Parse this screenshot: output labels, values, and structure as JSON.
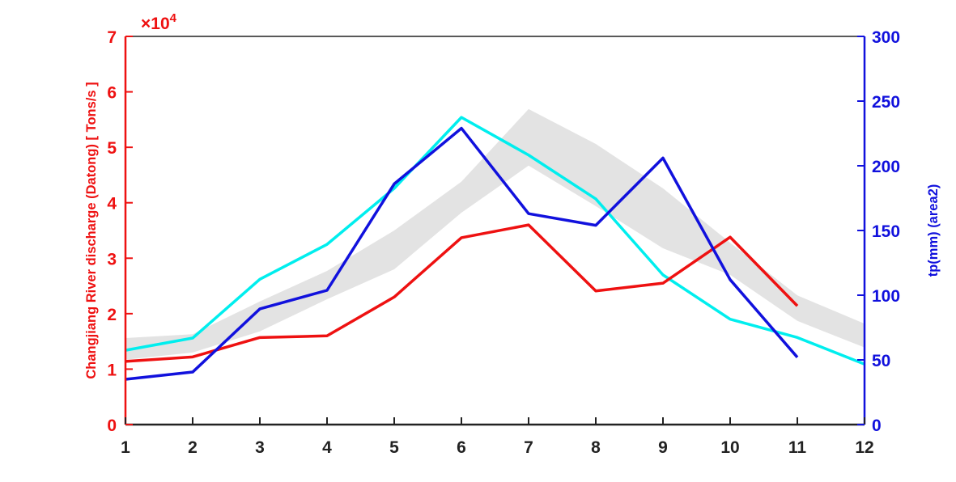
{
  "chart_data": {
    "type": "line",
    "x": [
      1,
      2,
      3,
      4,
      5,
      6,
      7,
      8,
      9,
      10,
      11,
      12
    ],
    "xlim": [
      1,
      12
    ],
    "xticks": [
      1,
      2,
      3,
      4,
      5,
      6,
      7,
      8,
      9,
      10,
      11,
      12
    ],
    "ylim": [
      0,
      7
    ],
    "yticks": [
      0,
      1,
      2,
      3,
      4,
      5,
      6,
      7
    ],
    "y2lim": [
      0,
      300
    ],
    "y2ticks": [
      0,
      50,
      100,
      150,
      200,
      250,
      300
    ],
    "ylabel": "Changjiang River discharge (Datong) [ Tons/s ]",
    "y2label": "tp(mm) (area2)",
    "y_multiplier": {
      "base": "×10",
      "exponent": "4"
    },
    "y_color": "#ee1111",
    "y2_color": "#1111dd",
    "grid": false,
    "band": {
      "color": "#e3e3e3",
      "upper": [
        1.56,
        1.63,
        2.22,
        2.77,
        3.5,
        4.38,
        5.69,
        5.06,
        4.26,
        3.28,
        2.33,
        1.82
      ],
      "lower": [
        1.17,
        1.3,
        1.68,
        2.26,
        2.8,
        3.82,
        4.67,
        3.94,
        3.18,
        2.7,
        1.87,
        1.39
      ]
    },
    "series": [
      {
        "color": "#00eeee",
        "values": [
          1.34,
          1.56,
          2.62,
          3.25,
          4.26,
          5.54,
          4.86,
          4.07,
          2.7,
          1.9,
          1.57,
          1.09
        ]
      },
      {
        "color": "#ee1111",
        "values": [
          1.14,
          1.22,
          1.57,
          1.6,
          2.3,
          3.37,
          3.6,
          2.41,
          2.55,
          3.38,
          2.14,
          null
        ]
      },
      {
        "color": "#1111dd",
        "axis": "y2",
        "values": [
          35,
          40.6,
          89.4,
          103.75,
          186,
          229,
          163,
          154,
          206,
          112,
          52,
          null
        ]
      }
    ]
  }
}
